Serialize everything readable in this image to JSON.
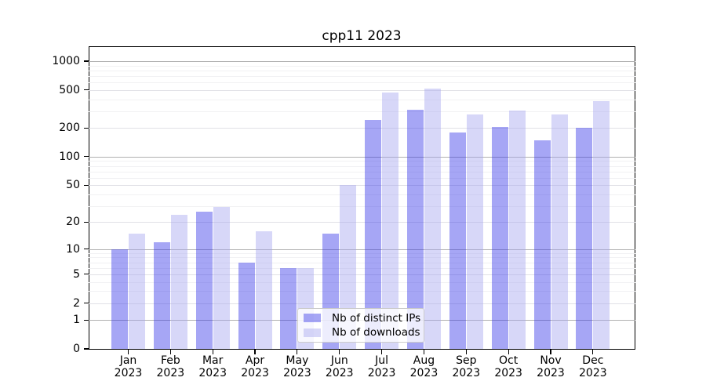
{
  "title": "cpp11 2023",
  "colors": {
    "distinct_ips_bar": "rgba(57,57,233,0.45)",
    "downloads_bar": "rgba(166,166,239,0.45)",
    "major_gridline": "#b0b0b0",
    "mid_gridline": "#e1e1e6",
    "minor_gridline": "#f1f1f3",
    "axis": "#000000"
  },
  "legend": {
    "position": "lower center",
    "items": [
      {
        "label": "Nb of distinct IPs",
        "color_key": "distinct_ips_bar"
      },
      {
        "label": "Nb of downloads",
        "color_key": "downloads_bar"
      }
    ]
  },
  "chart_data": {
    "type": "bar",
    "title": "cpp11 2023",
    "xlabel": "",
    "ylabel": "",
    "yscale": "log(1+v)",
    "ylim": [
      0,
      1430
    ],
    "yticks": [
      0,
      1,
      2,
      5,
      10,
      20,
      50,
      100,
      200,
      500,
      1000
    ],
    "major_grid_values": [
      1,
      10,
      100,
      1000
    ],
    "mid_grid_values": [
      2,
      5,
      20,
      50,
      200,
      500
    ],
    "minor_grid_values": [
      3,
      4,
      6,
      7,
      8,
      9,
      30,
      40,
      60,
      70,
      80,
      90,
      300,
      400,
      600,
      700,
      800,
      900
    ],
    "grid": true,
    "legend_position": "lower center",
    "categories": [
      "Jan 2023",
      "Feb 2023",
      "Mar 2023",
      "Apr 2023",
      "May 2023",
      "Jun 2023",
      "Jul 2023",
      "Aug 2023",
      "Sep 2023",
      "Oct 2023",
      "Nov 2023",
      "Dec 2023"
    ],
    "series": [
      {
        "name": "Nb of distinct IPs",
        "values": [
          10,
          12,
          26,
          7,
          6,
          15,
          245,
          310,
          180,
          206,
          150,
          202
        ]
      },
      {
        "name": "Nb of downloads",
        "values": [
          15,
          24,
          29,
          16,
          6,
          50,
          475,
          515,
          278,
          305,
          275,
          380
        ]
      }
    ]
  }
}
